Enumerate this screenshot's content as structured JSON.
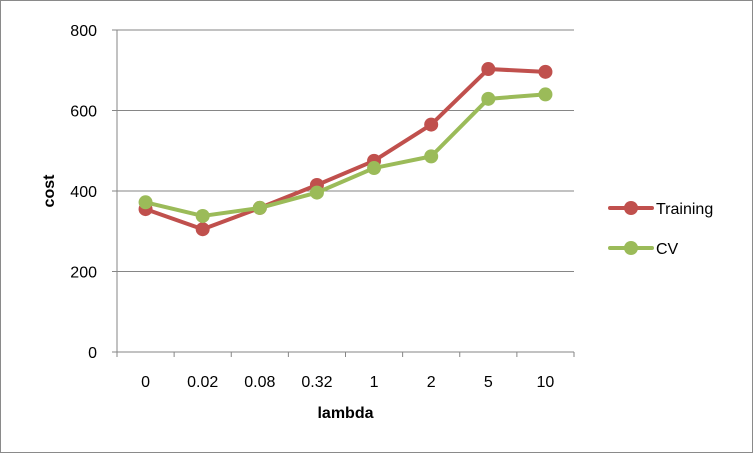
{
  "chart_data": {
    "type": "line",
    "categories": [
      "0",
      "0.02",
      "0.08",
      "0.32",
      "1",
      "2",
      "5",
      "10"
    ],
    "series": [
      {
        "name": "Training",
        "color": "#c0504d",
        "values": [
          355,
          305,
          358,
          415,
          475,
          565,
          703,
          696
        ]
      },
      {
        "name": "CV",
        "color": "#9bbb59",
        "values": [
          372,
          338,
          358,
          396,
          457,
          486,
          629,
          640
        ]
      }
    ],
    "title": "",
    "xlabel": "lambda",
    "ylabel": "cost",
    "ylim": [
      0,
      800
    ],
    "yticks": [
      "0",
      "200",
      "400",
      "600",
      "800"
    ],
    "grid": true,
    "legend": "right"
  }
}
